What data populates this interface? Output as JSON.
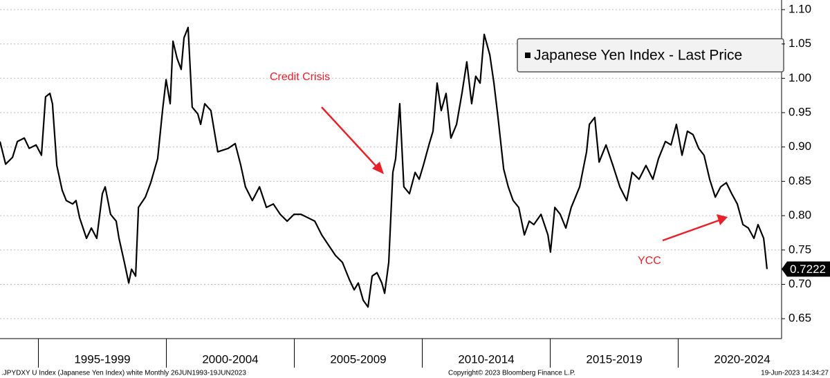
{
  "chart_data": {
    "type": "line",
    "series": [
      {
        "name": "Japanese Yen Index - Last Price",
        "color": "#000000",
        "x": [
          1993.5,
          1993.72,
          1993.99,
          1994.18,
          1994.45,
          1994.64,
          1994.91,
          1995.12,
          1995.28,
          1995.45,
          1995.55,
          1995.72,
          1995.93,
          1996.09,
          1996.34,
          1996.47,
          1996.61,
          1996.88,
          1997.07,
          1997.28,
          1997.5,
          1997.61,
          1997.82,
          1998.04,
          1998.15,
          1998.36,
          1998.53,
          1998.64,
          1998.8,
          1998.91,
          1999.18,
          1999.39,
          1999.66,
          1999.85,
          1999.99,
          2000.15,
          2000.26,
          2000.42,
          2000.58,
          2000.69,
          2000.85,
          2001.01,
          2001.23,
          2001.34,
          2001.5,
          2001.74,
          2002.01,
          2002.42,
          2002.69,
          2002.91,
          2003.09,
          2003.36,
          2003.64,
          2003.91,
          2004.18,
          2004.45,
          2004.72,
          2004.99,
          2005.26,
          2005.53,
          2005.8,
          2006.07,
          2006.34,
          2006.61,
          2006.88,
          2007.15,
          2007.34,
          2007.5,
          2007.69,
          2007.88,
          2008.04,
          2008.23,
          2008.42,
          2008.53,
          2008.69,
          2008.85,
          2008.96,
          2009.12,
          2009.28,
          2009.5,
          2009.72,
          2009.88,
          2010.04,
          2010.26,
          2010.42,
          2010.58,
          2010.74,
          2010.93,
          2011.12,
          2011.34,
          2011.55,
          2011.74,
          2011.93,
          2012.09,
          2012.26,
          2012.42,
          2012.64,
          2012.8,
          2012.96,
          2013.18,
          2013.36,
          2013.55,
          2013.77,
          2013.99,
          2014.18,
          2014.36,
          2014.64,
          2014.91,
          2015.01,
          2015.18,
          2015.39,
          2015.61,
          2015.82,
          2016.15,
          2016.42,
          2016.53,
          2016.74,
          2016.91,
          2017.18,
          2017.45,
          2017.72,
          2017.99,
          2018.2,
          2018.47,
          2018.74,
          2019.01,
          2019.23,
          2019.5,
          2019.72,
          2019.93,
          2020.15,
          2020.36,
          2020.58,
          2020.8,
          2021.01,
          2021.23,
          2021.45,
          2021.66,
          2021.88,
          2022.09,
          2022.31,
          2022.53,
          2022.74,
          2022.96,
          2023.12,
          2023.34,
          2023.4,
          2023.47
        ],
        "values": [
          0.908,
          0.875,
          0.885,
          0.908,
          0.913,
          0.898,
          0.903,
          0.888,
          0.973,
          0.978,
          0.963,
          0.873,
          0.837,
          0.822,
          0.817,
          0.822,
          0.797,
          0.767,
          0.782,
          0.767,
          0.832,
          0.842,
          0.802,
          0.792,
          0.767,
          0.732,
          0.702,
          0.722,
          0.712,
          0.812,
          0.827,
          0.848,
          0.883,
          0.953,
          0.998,
          0.963,
          1.054,
          1.029,
          1.013,
          1.059,
          1.074,
          0.958,
          0.948,
          0.933,
          0.963,
          0.953,
          0.893,
          0.898,
          0.905,
          0.873,
          0.842,
          0.822,
          0.842,
          0.812,
          0.817,
          0.802,
          0.792,
          0.802,
          0.802,
          0.797,
          0.792,
          0.772,
          0.757,
          0.742,
          0.732,
          0.707,
          0.692,
          0.702,
          0.677,
          0.667,
          0.712,
          0.717,
          0.702,
          0.687,
          0.732,
          0.863,
          0.883,
          0.963,
          0.842,
          0.832,
          0.863,
          0.853,
          0.873,
          0.903,
          0.923,
          0.993,
          0.953,
          0.978,
          0.913,
          0.933,
          0.978,
          1.024,
          0.963,
          1.003,
          0.993,
          1.064,
          1.034,
          0.993,
          0.943,
          0.868,
          0.842,
          0.822,
          0.812,
          0.772,
          0.792,
          0.787,
          0.802,
          0.772,
          0.747,
          0.812,
          0.802,
          0.782,
          0.812,
          0.842,
          0.893,
          0.933,
          0.943,
          0.878,
          0.903,
          0.873,
          0.842,
          0.822,
          0.863,
          0.853,
          0.873,
          0.853,
          0.883,
          0.908,
          0.903,
          0.933,
          0.888,
          0.923,
          0.918,
          0.898,
          0.888,
          0.853,
          0.827,
          0.842,
          0.848,
          0.832,
          0.817,
          0.787,
          0.782,
          0.767,
          0.787,
          0.767,
          0.747,
          0.7222
        ]
      }
    ],
    "xlim": [
      1993.5,
      2024.04
    ],
    "xticks": [
      {
        "value": 1995,
        "label": "1995-1999"
      },
      {
        "value": 2000,
        "label": "2000-2004"
      },
      {
        "value": 2005,
        "label": "2005-2009"
      },
      {
        "value": 2010,
        "label": "2010-2014"
      },
      {
        "value": 2015,
        "label": "2015-2019"
      },
      {
        "value": 2020,
        "label": "2020-2024"
      }
    ],
    "ylim": [
      0.621,
      1.114
    ],
    "yticks": [
      {
        "value": 0.65,
        "label": "0.65"
      },
      {
        "value": 0.7,
        "label": "0.70"
      },
      {
        "value": 0.75,
        "label": "0.75"
      },
      {
        "value": 0.8,
        "label": "0.80"
      },
      {
        "value": 0.85,
        "label": "0.85"
      },
      {
        "value": 0.9,
        "label": "0.90"
      },
      {
        "value": 0.95,
        "label": "0.95"
      },
      {
        "value": 1.0,
        "label": "1.00"
      },
      {
        "value": 1.05,
        "label": "1.05"
      },
      {
        "value": 1.1,
        "label": "1.10"
      }
    ],
    "grid": true,
    "legend": "upper right",
    "annotations": [
      "Credit Crisis",
      "YCC"
    ],
    "footer": {
      "left": ".JPYDXY U Index (Japanese Yen Index) white  Monthly 26JUN1993-19JUN2023",
      "center": "Copyright© 2023 Bloomberg Finance L.P.",
      "right": "19-Jun-2023 14:34:27"
    }
  }
}
